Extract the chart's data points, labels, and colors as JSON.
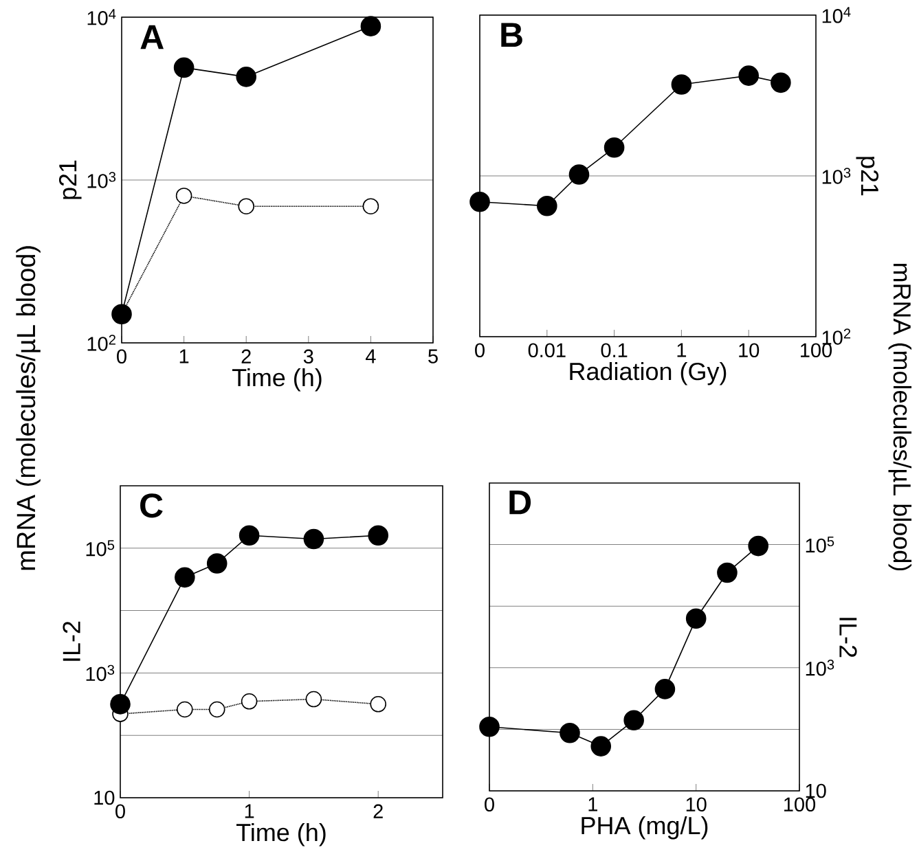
{
  "chart_data": [
    {
      "type": "line",
      "title": "A",
      "xlabel": "Time (h)",
      "ylabel": "p21",
      "log": "y",
      "grid": "y",
      "annotations": [
        "mRNA (molecules/µL blood)"
      ],
      "x": [
        0,
        1,
        2,
        4
      ],
      "xlim": [
        0,
        5
      ],
      "xticks": [
        0,
        1,
        2,
        3,
        4,
        5
      ],
      "ylim": [
        100,
        10000
      ],
      "yticks": [
        {
          "value": 100,
          "label": "10$^{2}$"
        },
        {
          "value": 1000,
          "label": "10$^{3}$"
        },
        {
          "value": 10000,
          "label": "10$^{4}$"
        }
      ],
      "series": [
        {
          "color": "#000000",
          "marker": "circle",
          "line_style": "solid",
          "values": [
            150,
            4900,
            4300,
            8800
          ]
        },
        {
          "color": "#000000",
          "marker": "circle",
          "line_style": "dotted",
          "values": [
            150,
            800,
            690,
            690
          ]
        }
      ]
    },
    {
      "type": "line",
      "title": "B",
      "xlabel": "Radiation (Gy)",
      "ylabel": "p21",
      "log": "xy",
      "grid": "y",
      "annotations": [
        "mRNA (molecules/µL blood)"
      ],
      "x": [
        0.001,
        0.01,
        0.03,
        0.1,
        1,
        10,
        30
      ],
      "xlim": [
        0.001,
        100
      ],
      "xticks": [
        {
          "value": 0.001,
          "label": "0"
        },
        0.01,
        0.1,
        1,
        10,
        100
      ],
      "ylim": [
        100,
        10000
      ],
      "yticks": [
        {
          "value": 100,
          "label": "10$^{2}$"
        },
        {
          "value": 1000,
          "label": "10$^{3}$"
        },
        {
          "value": 10000,
          "label": "10$^{4}$"
        }
      ],
      "series": [
        {
          "color": "#000000",
          "marker": "circle",
          "line_style": "solid",
          "values": [
            690,
            650,
            1020,
            1500,
            3700,
            4200,
            3800
          ]
        }
      ]
    },
    {
      "type": "line",
      "title": "C",
      "xlabel": "Time (h)",
      "ylabel": "IL-2",
      "log": "y",
      "grid": "y",
      "x": [
        0,
        0.5,
        0.75,
        1,
        1.5,
        2
      ],
      "xlim": [
        0,
        2.5
      ],
      "xticks": [
        0,
        1,
        2
      ],
      "ylim": [
        10,
        1000000
      ],
      "yticks": [
        10,
        {
          "value": 100,
          "label": null
        },
        {
          "value": 1000,
          "label": "10$^{3}$"
        },
        {
          "value": 10000,
          "label": null
        },
        {
          "value": 100000,
          "label": "10$^{5}$"
        }
      ],
      "series": [
        {
          "color": "#000000",
          "marker": "circle",
          "line_style": "solid",
          "values": [
            316,
            34000,
            57000,
            160000,
            140000,
            160000
          ]
        },
        {
          "color": "#000000",
          "marker": "circle",
          "line_style": "dotted",
          "values": [
            220,
            260,
            260,
            350,
            380,
            316
          ]
        }
      ]
    },
    {
      "type": "line",
      "title": "D",
      "xlabel": "PHA (mg/L)",
      "ylabel": "IL-2",
      "log": "xy",
      "grid": "y",
      "x": [
        0.1,
        0.6,
        1.2,
        2.5,
        5,
        10,
        20,
        40
      ],
      "xlim": [
        0.1,
        100
      ],
      "xticks": [
        {
          "value": 0.1,
          "label": "0"
        },
        1,
        10,
        100
      ],
      "ylim": [
        10,
        1000000
      ],
      "yticks": [
        10,
        {
          "value": 100,
          "label": null
        },
        {
          "value": 1000,
          "label": "10$^{3}$"
        },
        {
          "value": 10000,
          "label": null
        },
        {
          "value": 100000,
          "label": "10$^{5}$"
        }
      ],
      "series": [
        {
          "color": "#000000",
          "marker": "circle",
          "line_style": "solid",
          "values": [
            110,
            87,
            53,
            140,
            450,
            6300,
            35000,
            95000
          ]
        }
      ]
    }
  ]
}
